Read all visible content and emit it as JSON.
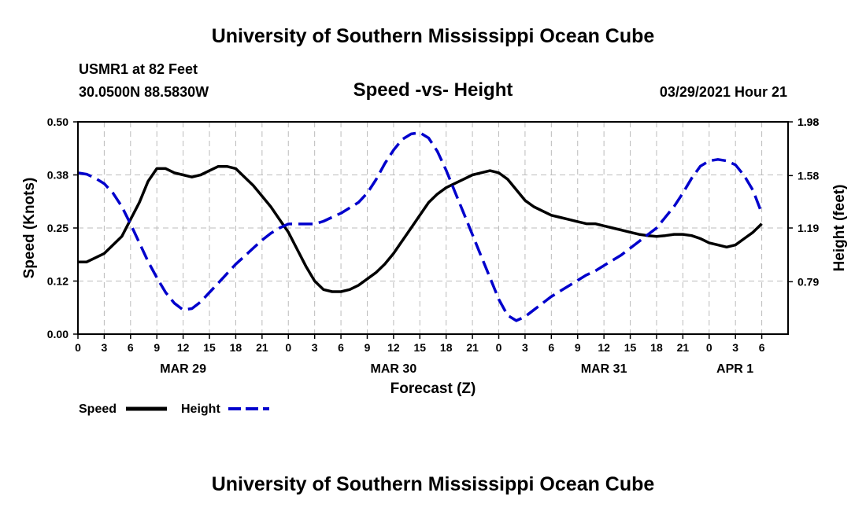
{
  "header": {
    "title": "University of Southern Mississippi Ocean Cube",
    "station": "USMR1 at 82 Feet",
    "coords": "30.0500N  88.5830W",
    "subtitle": "Speed -vs- Height",
    "datetime": "03/29/2021 Hour 21"
  },
  "footer": {
    "title": "University of Southern Mississippi Ocean Cube"
  },
  "legend": {
    "speed_label": "Speed",
    "height_label": "Height"
  },
  "colors": {
    "speed": "#000000",
    "height": "#0000cc",
    "grid": "#bbbbbb"
  },
  "chart_data": {
    "type": "line",
    "title": "Speed -vs- Height",
    "xlabel": "Forecast (Z)",
    "ylabel": "Speed (Knots)",
    "y2label": "Height (feet)",
    "x_range": [
      0,
      81
    ],
    "ylim": [
      0,
      0.5
    ],
    "y2lim": [
      0.4,
      1.98
    ],
    "y_ticks": [
      "0.00",
      "0.12",
      "0.25",
      "0.38",
      "0.50"
    ],
    "y2_ticks": [
      "0.79",
      "1.19",
      "1.58",
      "1.98"
    ],
    "x_ticks": [
      {
        "x": 0,
        "label": "0"
      },
      {
        "x": 3,
        "label": "3"
      },
      {
        "x": 6,
        "label": "6"
      },
      {
        "x": 9,
        "label": "9"
      },
      {
        "x": 12,
        "label": "12"
      },
      {
        "x": 15,
        "label": "15"
      },
      {
        "x": 18,
        "label": "18"
      },
      {
        "x": 21,
        "label": "21"
      },
      {
        "x": 24,
        "label": "0"
      },
      {
        "x": 27,
        "label": "3"
      },
      {
        "x": 30,
        "label": "6"
      },
      {
        "x": 33,
        "label": "9"
      },
      {
        "x": 36,
        "label": "12"
      },
      {
        "x": 39,
        "label": "15"
      },
      {
        "x": 42,
        "label": "18"
      },
      {
        "x": 45,
        "label": "21"
      },
      {
        "x": 48,
        "label": "0"
      },
      {
        "x": 51,
        "label": "3"
      },
      {
        "x": 54,
        "label": "6"
      },
      {
        "x": 57,
        "label": "9"
      },
      {
        "x": 60,
        "label": "12"
      },
      {
        "x": 63,
        "label": "15"
      },
      {
        "x": 66,
        "label": "18"
      },
      {
        "x": 69,
        "label": "21"
      },
      {
        "x": 72,
        "label": "0"
      },
      {
        "x": 75,
        "label": "3"
      },
      {
        "x": 78,
        "label": "6"
      }
    ],
    "date_labels": [
      {
        "x": 12,
        "label": "MAR 29"
      },
      {
        "x": 36,
        "label": "MAR 30"
      },
      {
        "x": 60,
        "label": "MAR 31"
      },
      {
        "x": 78,
        "label": "APR 1"
      }
    ],
    "series": [
      {
        "name": "Speed",
        "axis": "left",
        "style": "solid",
        "x": [
          0,
          1,
          2,
          3,
          4,
          5,
          6,
          7,
          8,
          9,
          10,
          11,
          12,
          13,
          14,
          15,
          16,
          17,
          18,
          19,
          20,
          21,
          22,
          23,
          24,
          25,
          26,
          27,
          28,
          29,
          30,
          31,
          32,
          33,
          34,
          35,
          36,
          37,
          38,
          39,
          40,
          41,
          42,
          43,
          44,
          45,
          46,
          47,
          48,
          49,
          50,
          51,
          52,
          53,
          54,
          55,
          56,
          57,
          58,
          59,
          60,
          61,
          62,
          63,
          64,
          65,
          66,
          67,
          68,
          69,
          70,
          71,
          72,
          73,
          74,
          75,
          76,
          77,
          78
        ],
        "values": [
          0.17,
          0.17,
          0.18,
          0.19,
          0.21,
          0.23,
          0.27,
          0.31,
          0.36,
          0.39,
          0.39,
          0.38,
          0.375,
          0.37,
          0.375,
          0.385,
          0.395,
          0.395,
          0.39,
          0.37,
          0.35,
          0.325,
          0.3,
          0.27,
          0.24,
          0.2,
          0.16,
          0.125,
          0.105,
          0.1,
          0.1,
          0.105,
          0.115,
          0.13,
          0.145,
          0.165,
          0.19,
          0.22,
          0.25,
          0.28,
          0.31,
          0.33,
          0.345,
          0.355,
          0.365,
          0.375,
          0.38,
          0.385,
          0.38,
          0.365,
          0.34,
          0.315,
          0.3,
          0.29,
          0.28,
          0.275,
          0.27,
          0.265,
          0.26,
          0.26,
          0.255,
          0.25,
          0.245,
          0.24,
          0.235,
          0.232,
          0.23,
          0.232,
          0.235,
          0.235,
          0.232,
          0.225,
          0.215,
          0.21,
          0.205,
          0.21,
          0.225,
          0.24,
          0.26
        ]
      },
      {
        "name": "Height",
        "axis": "right",
        "style": "dashed",
        "x": [
          0,
          1,
          2,
          3,
          4,
          5,
          6,
          7,
          8,
          9,
          10,
          11,
          12,
          13,
          14,
          15,
          16,
          17,
          18,
          19,
          20,
          21,
          22,
          23,
          24,
          25,
          26,
          27,
          28,
          29,
          30,
          31,
          32,
          33,
          34,
          35,
          36,
          37,
          38,
          39,
          40,
          41,
          42,
          43,
          44,
          45,
          46,
          47,
          48,
          49,
          50,
          51,
          52,
          53,
          54,
          55,
          56,
          57,
          58,
          59,
          60,
          61,
          62,
          63,
          64,
          65,
          66,
          67,
          68,
          69,
          70,
          71,
          72,
          73,
          74,
          75,
          76,
          77,
          78
        ],
        "values": [
          1.6,
          1.59,
          1.56,
          1.52,
          1.45,
          1.35,
          1.22,
          1.08,
          0.94,
          0.82,
          0.71,
          0.63,
          0.58,
          0.59,
          0.64,
          0.71,
          0.78,
          0.85,
          0.92,
          0.98,
          1.04,
          1.1,
          1.15,
          1.19,
          1.22,
          1.22,
          1.22,
          1.22,
          1.24,
          1.27,
          1.3,
          1.34,
          1.38,
          1.45,
          1.55,
          1.67,
          1.77,
          1.85,
          1.89,
          1.9,
          1.86,
          1.76,
          1.62,
          1.46,
          1.3,
          1.14,
          0.98,
          0.82,
          0.66,
          0.54,
          0.5,
          0.53,
          0.58,
          0.63,
          0.68,
          0.72,
          0.76,
          0.8,
          0.84,
          0.87,
          0.91,
          0.95,
          0.99,
          1.04,
          1.09,
          1.14,
          1.19,
          1.27,
          1.35,
          1.45,
          1.56,
          1.65,
          1.69,
          1.7,
          1.69,
          1.66,
          1.58,
          1.47,
          1.3
        ]
      }
    ]
  }
}
